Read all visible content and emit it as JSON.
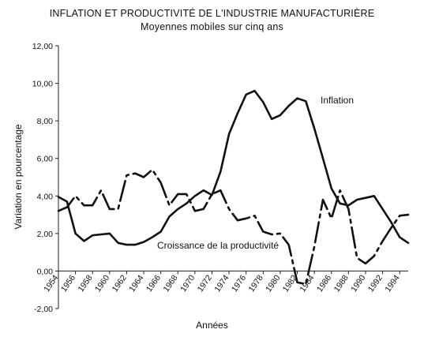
{
  "chart_data": {
    "type": "line",
    "title": "INFLATION ET PRODUCTIVITÉ DE L'INDUSTRIE MANUFACTURIÈRE",
    "subtitle": "Moyennes mobiles sur cinq ans",
    "xlabel": "Années",
    "ylabel": "Variation en pourcentage",
    "ylim": [
      -2,
      12
    ],
    "yticks": [
      "-2,00",
      "0,00",
      "2,00",
      "4,00",
      "6,00",
      "8,00",
      "10,00",
      "12,00"
    ],
    "xlim": [
      1954,
      1995
    ],
    "xticks": [
      "1954",
      "1956",
      "1958",
      "1960",
      "1962",
      "1964",
      "1966",
      "1968",
      "1970",
      "1972",
      "1974",
      "1976",
      "1978",
      "1980",
      "1982",
      "1984",
      "1986",
      "1988",
      "1990",
      "1992",
      "1994"
    ],
    "grid": false,
    "series": [
      {
        "name": "Inflation",
        "style": "solid",
        "x": [
          1954,
          1955,
          1956,
          1957,
          1958,
          1959,
          1960,
          1961,
          1962,
          1963,
          1964,
          1965,
          1966,
          1967,
          1968,
          1969,
          1970,
          1971,
          1972,
          1973,
          1974,
          1975,
          1976,
          1977,
          1978,
          1979,
          1980,
          1981,
          1982,
          1983,
          1984,
          1985,
          1986,
          1987,
          1988,
          1989,
          1990,
          1991,
          1992,
          1993,
          1994,
          1995
        ],
        "values": [
          3.95,
          3.7,
          2.0,
          1.6,
          1.9,
          1.95,
          2.0,
          1.5,
          1.4,
          1.4,
          1.55,
          1.8,
          2.1,
          2.9,
          3.3,
          3.6,
          4.0,
          4.3,
          4.05,
          5.3,
          7.3,
          8.4,
          9.4,
          9.6,
          9.0,
          8.1,
          8.3,
          8.8,
          9.2,
          9.05,
          7.6,
          6.0,
          4.4,
          3.6,
          3.5,
          3.8,
          3.9,
          4.0,
          3.3,
          2.6,
          1.8,
          1.5
        ]
      },
      {
        "name": "Croissance de la productivité",
        "style": "dashed",
        "x": [
          1954,
          1955,
          1956,
          1957,
          1958,
          1959,
          1960,
          1961,
          1962,
          1963,
          1964,
          1965,
          1966,
          1967,
          1968,
          1969,
          1970,
          1971,
          1972,
          1973,
          1974,
          1975,
          1976,
          1977,
          1978,
          1979,
          1980,
          1981,
          1982,
          1983,
          1984,
          1985,
          1986,
          1987,
          1988,
          1989,
          1990,
          1991,
          1992,
          1993,
          1994,
          1995
        ],
        "values": [
          3.2,
          3.4,
          4.0,
          3.5,
          3.5,
          4.3,
          3.3,
          3.3,
          5.1,
          5.2,
          5.0,
          5.4,
          4.7,
          3.5,
          4.1,
          4.1,
          3.2,
          3.3,
          4.1,
          4.3,
          3.3,
          2.7,
          2.8,
          2.95,
          2.1,
          1.95,
          2.0,
          1.4,
          -0.6,
          -0.7,
          1.3,
          3.8,
          2.8,
          4.3,
          3.3,
          0.7,
          0.4,
          0.8,
          1.6,
          2.3,
          2.95,
          3.0
        ]
      }
    ],
    "annotations": [
      {
        "text": "Inflation",
        "series": 0
      },
      {
        "text": "Croissance de la productivité",
        "series": 1
      }
    ]
  }
}
